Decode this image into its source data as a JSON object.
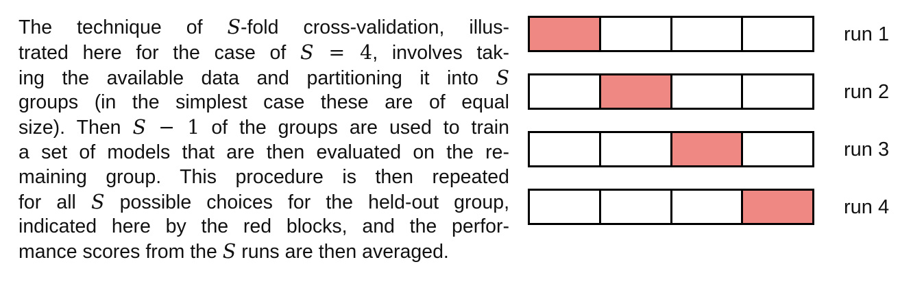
{
  "caption": {
    "lines": [
      [
        {
          "t": "The technique of "
        },
        {
          "t": "S",
          "m": true
        },
        {
          "t": "-fold cross-validation, illus-"
        }
      ],
      [
        {
          "t": "trated here for the case of "
        },
        {
          "t": "S",
          "m": true
        },
        {
          "t": " = 4",
          "n": true
        },
        {
          "t": ", involves tak-"
        }
      ],
      [
        {
          "t": "ing the available data and partitioning it into "
        },
        {
          "t": "S",
          "m": true
        }
      ],
      [
        {
          "t": "groups (in the simplest case these are of equal"
        }
      ],
      [
        {
          "t": "size). Then "
        },
        {
          "t": "S",
          "m": true
        },
        {
          "t": " − 1",
          "n": true
        },
        {
          "t": " of the groups are used to train"
        }
      ],
      [
        {
          "t": "a set of models that are then evaluated on the re-"
        }
      ],
      [
        {
          "t": "maining group.  This procedure is then repeated"
        }
      ],
      [
        {
          "t": "for all "
        },
        {
          "t": "S",
          "m": true
        },
        {
          "t": " possible choices for the held-out group,"
        }
      ],
      [
        {
          "t": "indicated here by the red blocks, and the perfor-"
        }
      ],
      [
        {
          "t": "mance scores from the "
        },
        {
          "t": "S",
          "m": true
        },
        {
          "t": " runs are then averaged."
        }
      ]
    ]
  },
  "diagram": {
    "fold_count": 4,
    "colors": {
      "held_out": "#ef8783",
      "training": "#ffffff",
      "border": "#000000"
    },
    "runs": [
      {
        "label": "run 1",
        "held_out_index": 0
      },
      {
        "label": "run 2",
        "held_out_index": 1
      },
      {
        "label": "run 3",
        "held_out_index": 2
      },
      {
        "label": "run 4",
        "held_out_index": 3
      }
    ]
  }
}
